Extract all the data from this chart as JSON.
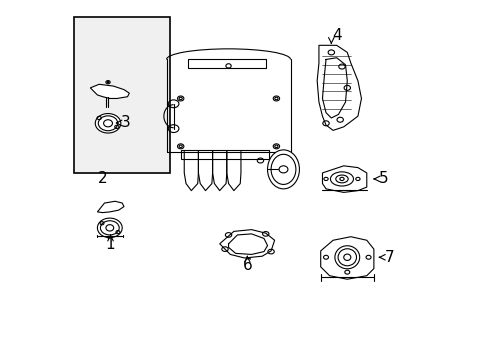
{
  "background_color": "#ffffff",
  "line_color": "#000000",
  "text_color": "#000000",
  "font_size_labels": 11,
  "line_width": 0.8
}
